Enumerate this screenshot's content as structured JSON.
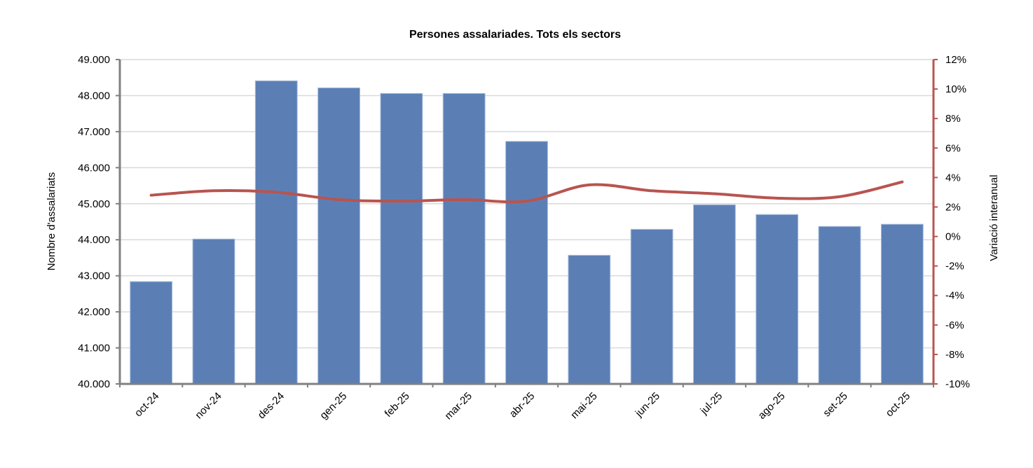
{
  "chart_data": {
    "type": "bar",
    "title": "Persones assalariades. Tots els sectors",
    "xlabel": "",
    "ylabel": "Nombre d'assalariats",
    "y2label": "Variació interanual",
    "categories": [
      "oct-24",
      "nov-24",
      "des-24",
      "gen-25",
      "feb-25",
      "mar-25",
      "abr-25",
      "mai-25",
      "jun-25",
      "jul-25",
      "ago-25",
      "set-25",
      "oct-25"
    ],
    "series": [
      {
        "name": "Persones assalariades",
        "type": "bar",
        "axis": "left",
        "color": "#5B7FB5",
        "values": [
          42840,
          44020,
          48410,
          48215,
          48060,
          48060,
          46730,
          43570,
          44290,
          44970,
          44700,
          44370,
          44430
        ]
      },
      {
        "name": "Variació interanual",
        "type": "line",
        "axis": "right",
        "color": "#B85450",
        "values": [
          2.8,
          3.1,
          3.0,
          2.5,
          2.4,
          2.5,
          2.4,
          3.5,
          3.1,
          2.9,
          2.6,
          2.7,
          3.7
        ]
      }
    ],
    "ylim": [
      40000,
      49000
    ],
    "y2lim": [
      -10,
      12
    ],
    "yticks": [
      "40.000",
      "41.000",
      "42.000",
      "43.000",
      "44.000",
      "45.000",
      "46.000",
      "47.000",
      "48.000",
      "49.000"
    ],
    "y2ticks": [
      "-10%",
      "-8%",
      "-6%",
      "-4%",
      "-2%",
      "0%",
      "2%",
      "4%",
      "6%",
      "8%",
      "10%",
      "12%"
    ],
    "grid": true,
    "legend": "none"
  }
}
